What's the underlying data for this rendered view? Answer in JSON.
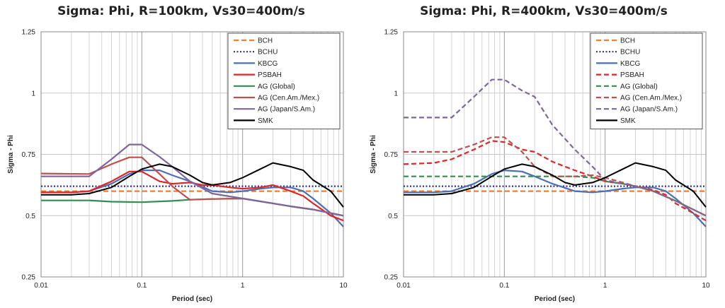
{
  "colors": {
    "BCH": "#f07f2d",
    "BCHU": "#2e3192",
    "KBCG": "#4a6fb8",
    "PSBAH": "#e02626",
    "AG_Global": "#2f8f4e",
    "AG_CenAm": "#c0504d",
    "AG_Japan": "#8064a2",
    "SMK": "#000000"
  },
  "chart_data": [
    {
      "type": "line",
      "title": "Sigma: Phi, R=100km, Vs30=400m/s",
      "xlabel": "Period (sec)",
      "ylabel": "Sigma - Phi",
      "xscale": "log",
      "xlim": [
        0.01,
        10
      ],
      "ylim": [
        0.25,
        1.25
      ],
      "xticks": [
        "0.01",
        "0.1",
        "1",
        "10"
      ],
      "yticks": [
        "0.25",
        "0.5",
        "0.75",
        "1",
        "1.25"
      ],
      "grid": true,
      "legend_position": "top-right",
      "series": [
        {
          "name": "BCH",
          "color_key": "BCH",
          "dash": "dash",
          "x": [
            0.01,
            10
          ],
          "y": [
            0.6,
            0.6
          ]
        },
        {
          "name": "BCHU",
          "color_key": "BCHU",
          "dash": "dot",
          "x": [
            0.01,
            10
          ],
          "y": [
            0.62,
            0.62
          ]
        },
        {
          "name": "KBCG",
          "color_key": "KBCG",
          "dash": "solid",
          "x": [
            0.01,
            0.02,
            0.03,
            0.05,
            0.075,
            0.1,
            0.15,
            0.2,
            0.3,
            0.5,
            0.75,
            1,
            1.5,
            2,
            3,
            4,
            5,
            7.5,
            10
          ],
          "y": [
            0.595,
            0.595,
            0.6,
            0.63,
            0.67,
            0.685,
            0.685,
            0.665,
            0.64,
            0.6,
            0.595,
            0.6,
            0.61,
            0.615,
            0.615,
            0.6,
            0.57,
            0.51,
            0.455
          ]
        },
        {
          "name": "PSBAH",
          "color_key": "PSBAH",
          "dash": "solid",
          "x": [
            0.01,
            0.02,
            0.03,
            0.05,
            0.075,
            0.1,
            0.15,
            0.2,
            0.3,
            0.4,
            0.5,
            0.75,
            1,
            1.5,
            2,
            3,
            4,
            5,
            7.5,
            10
          ],
          "y": [
            0.595,
            0.595,
            0.6,
            0.64,
            0.68,
            0.68,
            0.64,
            0.63,
            0.635,
            0.625,
            0.625,
            0.615,
            0.61,
            0.615,
            0.625,
            0.6,
            0.58,
            0.55,
            0.5,
            0.48
          ]
        },
        {
          "name": "AG (Global)",
          "color_key": "AG_Global",
          "dash": "solid",
          "x": [
            0.01,
            0.03,
            0.05,
            0.1,
            0.2,
            0.3,
            0.5,
            1,
            2,
            3,
            5,
            10
          ],
          "y": [
            0.562,
            0.562,
            0.557,
            0.555,
            0.56,
            0.565,
            0.568,
            0.57,
            0.55,
            0.538,
            0.525,
            0.5
          ]
        },
        {
          "name": "AG (Cen.Am./Mex.)",
          "color_key": "AG_CenAm",
          "dash": "solid",
          "x": [
            0.01,
            0.03,
            0.05,
            0.075,
            0.1,
            0.15,
            0.2,
            0.3,
            0.5,
            1,
            2,
            3,
            5,
            10
          ],
          "y": [
            0.672,
            0.67,
            0.71,
            0.738,
            0.738,
            0.67,
            0.62,
            0.565,
            0.568,
            0.57,
            0.55,
            0.538,
            0.525,
            0.5
          ]
        },
        {
          "name": "AG (Japan/S.Am.)",
          "color_key": "AG_Japan",
          "dash": "solid",
          "x": [
            0.01,
            0.03,
            0.05,
            0.075,
            0.1,
            0.15,
            0.2,
            0.3,
            0.5,
            1,
            2,
            3,
            5,
            10
          ],
          "y": [
            0.66,
            0.66,
            0.73,
            0.79,
            0.79,
            0.74,
            0.7,
            0.64,
            0.59,
            0.57,
            0.55,
            0.538,
            0.525,
            0.5
          ]
        },
        {
          "name": "SMK",
          "color_key": "SMK",
          "dash": "solid",
          "x": [
            0.01,
            0.02,
            0.03,
            0.05,
            0.075,
            0.1,
            0.15,
            0.2,
            0.3,
            0.4,
            0.5,
            0.75,
            1,
            1.5,
            2,
            3,
            4,
            5,
            7.5,
            10
          ],
          "y": [
            0.585,
            0.585,
            0.59,
            0.615,
            0.66,
            0.69,
            0.71,
            0.7,
            0.665,
            0.635,
            0.625,
            0.635,
            0.655,
            0.69,
            0.715,
            0.7,
            0.685,
            0.645,
            0.6,
            0.535
          ]
        }
      ]
    },
    {
      "type": "line",
      "title": "Sigma: Phi, R=400km, Vs30=400m/s",
      "xlabel": "Period (sec)",
      "ylabel": "Sigma - Phi",
      "xscale": "log",
      "xlim": [
        0.01,
        10
      ],
      "ylim": [
        0.25,
        1.25
      ],
      "xticks": [
        "0.01",
        "0.1",
        "1",
        "10"
      ],
      "yticks": [
        "0.25",
        "0.5",
        "0.75",
        "1",
        "1.25"
      ],
      "grid": true,
      "legend_position": "top-right",
      "series": [
        {
          "name": "BCH",
          "color_key": "BCH",
          "dash": "dash",
          "x": [
            0.01,
            10
          ],
          "y": [
            0.6,
            0.6
          ]
        },
        {
          "name": "BCHU",
          "color_key": "BCHU",
          "dash": "dot",
          "x": [
            0.01,
            10
          ],
          "y": [
            0.62,
            0.62
          ]
        },
        {
          "name": "KBCG",
          "color_key": "KBCG",
          "dash": "solid",
          "x": [
            0.01,
            0.02,
            0.03,
            0.05,
            0.075,
            0.1,
            0.15,
            0.2,
            0.3,
            0.5,
            0.75,
            1,
            1.5,
            2,
            3,
            4,
            5,
            7.5,
            10
          ],
          "y": [
            0.595,
            0.595,
            0.6,
            0.63,
            0.67,
            0.685,
            0.68,
            0.66,
            0.63,
            0.6,
            0.595,
            0.6,
            0.61,
            0.615,
            0.615,
            0.6,
            0.57,
            0.51,
            0.455
          ]
        },
        {
          "name": "PSBAH",
          "color_key": "PSBAH",
          "dash": "dash",
          "x": [
            0.01,
            0.02,
            0.03,
            0.05,
            0.075,
            0.1,
            0.15,
            0.2,
            0.3,
            0.5,
            0.75,
            1,
            1.5,
            2,
            3,
            4,
            5,
            7.5,
            10
          ],
          "y": [
            0.71,
            0.715,
            0.73,
            0.77,
            0.805,
            0.8,
            0.77,
            0.76,
            0.72,
            0.685,
            0.66,
            0.64,
            0.63,
            0.62,
            0.605,
            0.585,
            0.55,
            0.51,
            0.48
          ]
        },
        {
          "name": "AG (Global)",
          "color_key": "AG_Global",
          "dash": "dash",
          "x": [
            0.01,
            0.03,
            0.1,
            0.3,
            0.5,
            0.75,
            1,
            1.5,
            2,
            3,
            5,
            10
          ],
          "y": [
            0.66,
            0.66,
            0.66,
            0.66,
            0.66,
            0.655,
            0.64,
            0.63,
            0.62,
            0.6,
            0.56,
            0.5
          ]
        },
        {
          "name": "AG (Cen.Am./Mex.)",
          "color_key": "AG_CenAm",
          "dash": "dash",
          "x": [
            0.01,
            0.02,
            0.03,
            0.05,
            0.075,
            0.1,
            0.15,
            0.2,
            0.3,
            0.5,
            0.75,
            1,
            1.5,
            2,
            3,
            5,
            10
          ],
          "y": [
            0.76,
            0.76,
            0.76,
            0.79,
            0.82,
            0.82,
            0.76,
            0.7,
            0.66,
            0.66,
            0.665,
            0.655,
            0.635,
            0.62,
            0.6,
            0.56,
            0.5
          ]
        },
        {
          "name": "AG (Japan/S.Am.)",
          "color_key": "AG_Japan",
          "dash": "dash",
          "x": [
            0.01,
            0.02,
            0.03,
            0.05,
            0.075,
            0.1,
            0.15,
            0.2,
            0.3,
            0.5,
            0.75,
            1,
            1.5,
            2,
            3,
            5,
            10
          ],
          "y": [
            0.9,
            0.9,
            0.9,
            0.985,
            1.055,
            1.055,
            1.01,
            0.985,
            0.87,
            0.77,
            0.7,
            0.645,
            0.63,
            0.62,
            0.6,
            0.56,
            0.5
          ]
        },
        {
          "name": "SMK",
          "color_key": "SMK",
          "dash": "solid",
          "x": [
            0.01,
            0.02,
            0.03,
            0.05,
            0.075,
            0.1,
            0.15,
            0.2,
            0.3,
            0.4,
            0.5,
            0.75,
            1,
            1.5,
            2,
            3,
            4,
            5,
            7.5,
            10
          ],
          "y": [
            0.585,
            0.585,
            0.59,
            0.615,
            0.66,
            0.69,
            0.71,
            0.7,
            0.665,
            0.635,
            0.625,
            0.635,
            0.655,
            0.69,
            0.715,
            0.7,
            0.685,
            0.645,
            0.6,
            0.535
          ]
        }
      ]
    }
  ]
}
